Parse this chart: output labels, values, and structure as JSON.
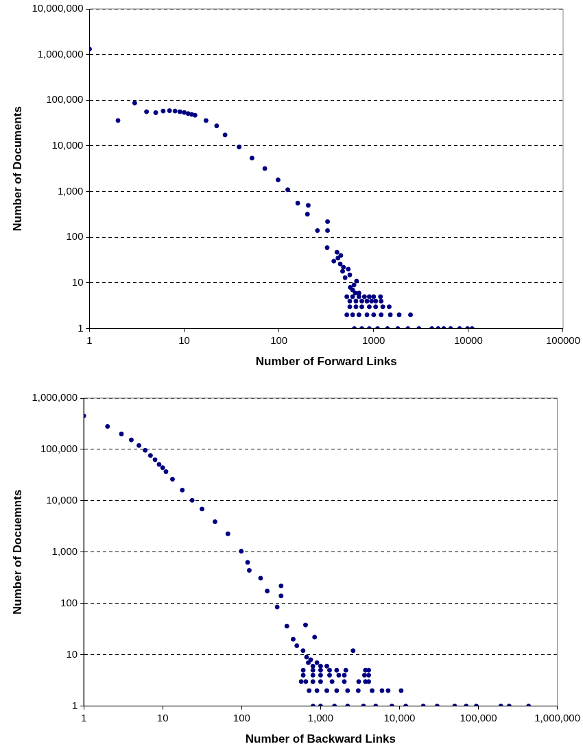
{
  "chart_data": [
    {
      "type": "scatter",
      "xlabel": "Number of Forward Links",
      "ylabel": "Number of Documents",
      "log": "xy",
      "grid": "y",
      "legend": false,
      "marker": "circle",
      "xlim": [
        1,
        100000
      ],
      "xticks": [
        1,
        10,
        100,
        1000,
        10000,
        100000
      ],
      "ylim": [
        1,
        10000000
      ],
      "yticks": [
        {
          "value": 1,
          "label": "1"
        },
        {
          "value": 10,
          "label": "10"
        },
        {
          "value": 100,
          "label": "100"
        },
        {
          "value": 1000,
          "label": "1,000"
        },
        {
          "value": 10000,
          "label": "10,000"
        },
        {
          "value": 100000,
          "label": "100,000"
        },
        {
          "value": 1000000,
          "label": "1,000,000"
        },
        {
          "value": 10000000,
          "label": "10,000,000"
        }
      ],
      "series": [
        {
          "color": "#000080",
          "x": [
            1,
            2,
            3,
            4,
            5,
            6,
            7,
            8,
            9,
            10,
            11,
            12,
            13,
            17,
            22,
            27,
            38,
            52,
            71,
            98,
            124,
            158,
            200,
            204,
            255,
            323,
            326,
            326,
            380,
            410,
            444,
            500,
            566,
            660,
            600,
            620,
            640,
            700,
            560,
            540,
            480,
            450,
            420,
            470,
            521,
            600,
            700,
            800,
            900,
            1000,
            1180,
            560,
            650,
            750,
            850,
            950,
            1050,
            1200,
            560,
            650,
            750,
            900,
            1050,
            1250,
            1460,
            521,
            600,
            700,
            850,
            1000,
            1200,
            1500,
            1860,
            2450,
            625,
            750,
            900,
            1100,
            1400,
            1800,
            2300,
            3000,
            4110,
            4800,
            5500,
            6500,
            8080,
            9800,
            10960
          ],
          "values": [
            1320000,
            36000,
            87000,
            56000,
            53500,
            58000,
            59000,
            58000,
            56000,
            54000,
            51000,
            49000,
            47000,
            36000,
            27500,
            17400,
            9500,
            5400,
            3200,
            1800,
            1100,
            560,
            320,
            500,
            140,
            59,
            220,
            140,
            30,
            47,
            26,
            13,
            8,
            11,
            7,
            9,
            6,
            6,
            15,
            20,
            22,
            40,
            35,
            18,
            5,
            5,
            5,
            5,
            5,
            5,
            5,
            4,
            4,
            4,
            4,
            4,
            4,
            4,
            3,
            3,
            3,
            3,
            3,
            3,
            3,
            2,
            2,
            2,
            2,
            2,
            2,
            2,
            2,
            2,
            1,
            1,
            1,
            1,
            1,
            1,
            1,
            1,
            1,
            1,
            1,
            1,
            1,
            1,
            1
          ]
        }
      ]
    },
    {
      "type": "scatter",
      "xlabel": "Number of Backward Links",
      "ylabel": "Number of Docuemnts",
      "log": "xy",
      "grid": "y",
      "legend": false,
      "marker": "circle",
      "xlim": [
        1,
        1000000
      ],
      "xticks": [
        {
          "value": 1,
          "label": "1"
        },
        {
          "value": 10,
          "label": "10"
        },
        {
          "value": 100,
          "label": "100"
        },
        {
          "value": 1000,
          "label": "1,000"
        },
        {
          "value": 10000,
          "label": "10,000"
        },
        {
          "value": 100000,
          "label": "100,000"
        },
        {
          "value": 1000000,
          "label": "1,000,000"
        }
      ],
      "ylim": [
        1,
        1000000
      ],
      "yticks": [
        {
          "value": 1,
          "label": "1"
        },
        {
          "value": 10,
          "label": "10"
        },
        {
          "value": 100,
          "label": "100"
        },
        {
          "value": 1000,
          "label": "1,000"
        },
        {
          "value": 10000,
          "label": "10,000"
        },
        {
          "value": 100000,
          "label": "100,000"
        },
        {
          "value": 1000000,
          "label": "1,000,000"
        }
      ],
      "series": [
        {
          "color": "#000080",
          "x": [
            1,
            2,
            3,
            4,
            5,
            6,
            7,
            8,
            9,
            10,
            11,
            13.3,
            17.7,
            23.6,
            31.5,
            46,
            67,
            99,
            119,
            125,
            174,
            211,
            282,
            374,
            500,
            665,
            316,
            316,
            645,
            841,
            2580,
            450,
            600,
            700,
            750,
            800,
            900,
            1000,
            1200,
            603,
            800,
            1000,
            1300,
            1600,
            2090,
            3700,
            4070,
            603,
            800,
            1000,
            1300,
            1700,
            2000,
            3600,
            4070,
            569,
            650,
            800,
            1000,
            1400,
            2000,
            3040,
            3700,
            4070,
            716,
            900,
            1200,
            1600,
            2200,
            3000,
            4500,
            6000,
            7180,
            10500,
            803,
            1000,
            1500,
            2200,
            3500,
            5000,
            8000,
            12000,
            20000,
            30000,
            50000,
            70000,
            94000,
            192000,
            245000,
            432000
          ],
          "values": [
            450000,
            280000,
            200000,
            153000,
            119000,
            96000,
            76000,
            63000,
            51000,
            44000,
            36800,
            26300,
            16100,
            10200,
            6900,
            3900,
            2270,
            1040,
            630,
            440,
            310,
            174,
            85,
            36,
            15,
            9,
            220,
            140,
            38,
            22,
            12,
            20,
            12,
            7,
            8,
            6,
            7,
            6,
            6,
            5,
            5,
            5,
            5,
            5,
            5,
            5,
            5,
            4,
            4,
            4,
            4,
            4,
            4,
            4,
            4,
            3,
            3,
            3,
            3,
            3,
            3,
            3,
            3,
            3,
            2,
            2,
            2,
            2,
            2,
            2,
            2,
            2,
            2,
            2,
            1,
            1,
            1,
            1,
            1,
            1,
            1,
            1,
            1,
            1,
            1,
            1,
            1,
            1,
            1,
            1
          ]
        }
      ]
    }
  ]
}
